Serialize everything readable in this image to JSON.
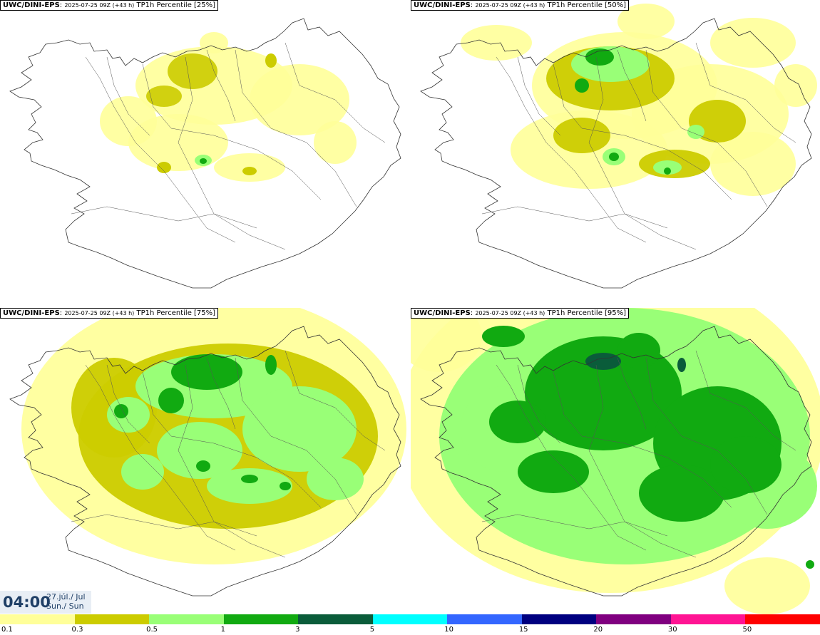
{
  "panels": [
    {
      "model": "UWC/DINI-EPS",
      "run": "2025-07-25 09Z (+43 h)",
      "label": "TP1h Percentile [25%]"
    },
    {
      "model": "UWC/DINI-EPS",
      "run": "2025-07-25 09Z (+43 h)",
      "label": "TP1h Percentile [50%]"
    },
    {
      "model": "UWC/DINI-EPS",
      "run": "2025-07-25 09Z (+43 h)",
      "label": "TP1h Percentile [75%]"
    },
    {
      "model": "UWC/DINI-EPS",
      "run": "2025-07-25 09Z (+43 h)",
      "label": "TP1h Percentile [95%]"
    }
  ],
  "valid_time": {
    "time": "04:00",
    "date_line1": "27.júl./ Jul",
    "date_line2": "Sun./ Sun"
  },
  "legend": {
    "colors": [
      "#ffff99",
      "#cccc00",
      "#99ff77",
      "#11aa11",
      "#0a5c3a",
      "#00ffff",
      "#3366ff",
      "#000080",
      "#800080",
      "#ff1493",
      "#ff0000"
    ],
    "ticks": [
      "0.1",
      "0.3",
      "0.5",
      "1",
      "3",
      "5",
      "10",
      "15",
      "20",
      "30",
      "50"
    ]
  }
}
